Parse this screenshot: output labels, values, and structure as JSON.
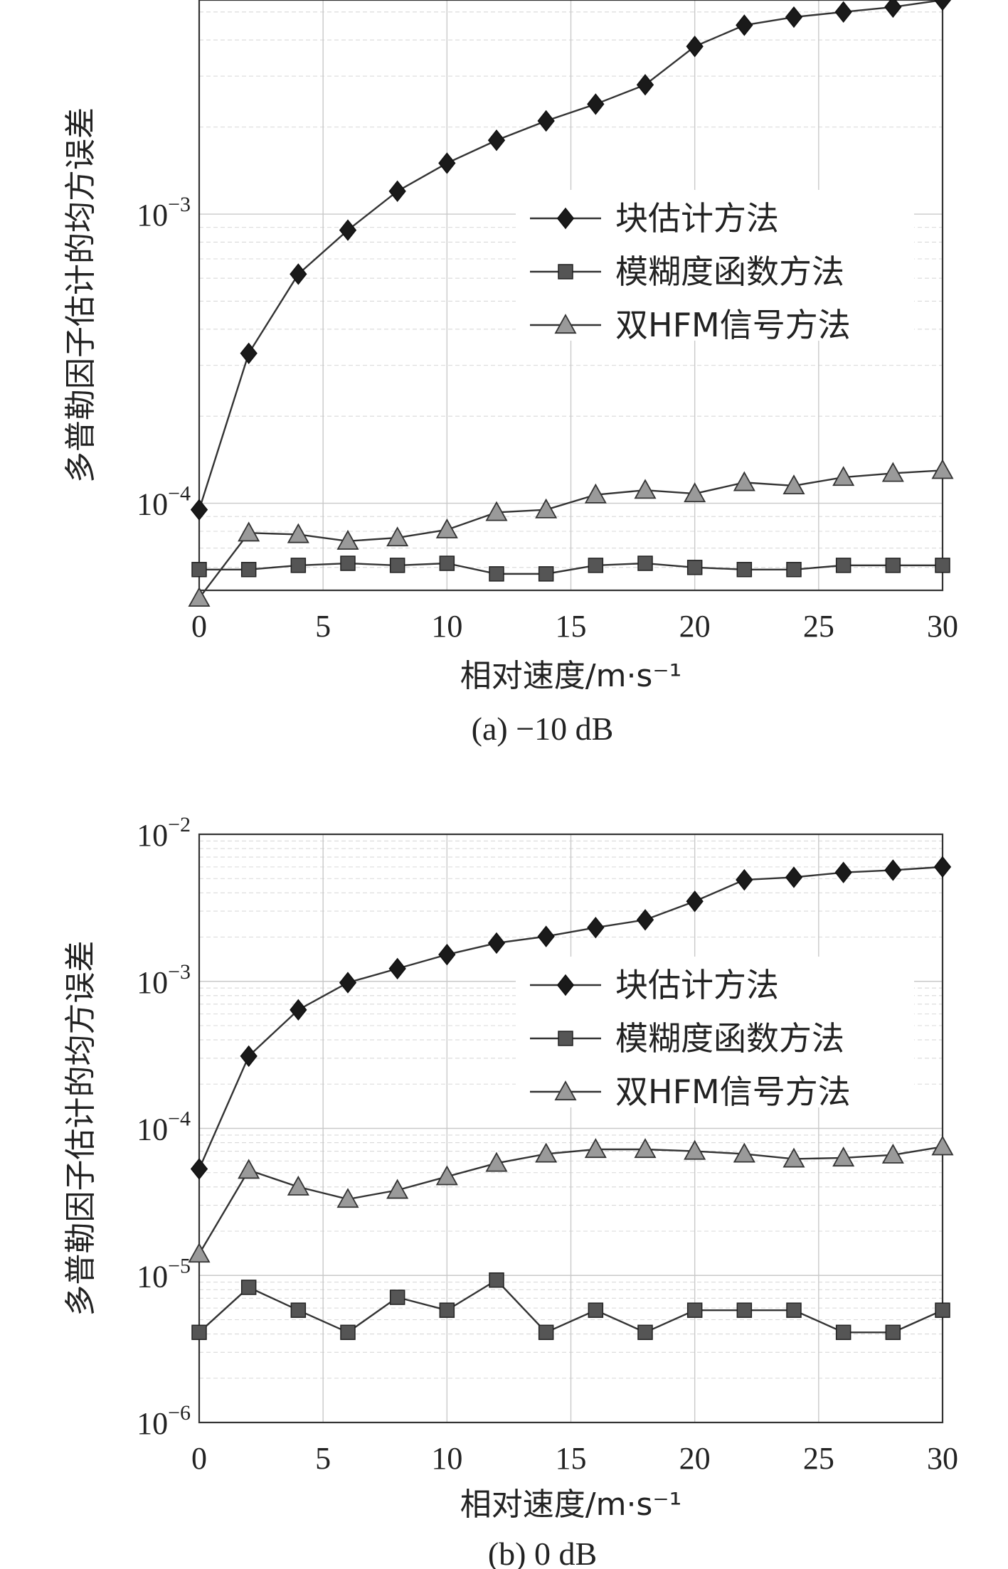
{
  "chart_data": [
    {
      "type": "line",
      "caption": "(a) −10 dB",
      "xlabel": "相对速度/m·s⁻¹",
      "ylabel": "多普勒因子估计的均方误差",
      "x": [
        0,
        2,
        4,
        6,
        8,
        10,
        12,
        14,
        16,
        18,
        20,
        22,
        24,
        26,
        28,
        30
      ],
      "xlim": [
        0,
        30
      ],
      "xticks": [
        0,
        5,
        10,
        15,
        20,
        25,
        30
      ],
      "yscale": "log",
      "ylim": [
        5e-05,
        0.0055
      ],
      "ytick_labels": [
        {
          "mant": "10",
          "exp": "−3",
          "value": 0.001
        },
        {
          "mant": "10",
          "exp": "−4",
          "value": 0.0001
        }
      ],
      "grid": true,
      "legend_position": "upper-middle-right",
      "series": [
        {
          "name": "块估计方法",
          "marker": "diamond",
          "color": "#1a1a1a",
          "values": [
            9.5e-05,
            0.00033,
            0.00062,
            0.00088,
            0.0012,
            0.0015,
            0.0018,
            0.0021,
            0.0024,
            0.0028,
            0.0038,
            0.0045,
            0.0048,
            0.005,
            0.0052,
            0.0055
          ]
        },
        {
          "name": "模糊度函数方法",
          "marker": "square",
          "color": "#555555",
          "values": [
            5.9e-05,
            5.9e-05,
            6.1e-05,
            6.2e-05,
            6.1e-05,
            6.2e-05,
            5.7e-05,
            5.7e-05,
            6.1e-05,
            6.2e-05,
            6e-05,
            5.9e-05,
            5.9e-05,
            6.1e-05,
            6.1e-05,
            6.1e-05
          ]
        },
        {
          "name": "双HFM信号方法",
          "marker": "triangle",
          "color": "#9a9a9a",
          "values": [
            4.7e-05,
            7.9e-05,
            7.8e-05,
            7.4e-05,
            7.6e-05,
            8.1e-05,
            9.3e-05,
            9.5e-05,
            0.000107,
            0.000111,
            0.000108,
            0.000118,
            0.000115,
            0.000123,
            0.000127,
            0.00013
          ]
        }
      ]
    },
    {
      "type": "line",
      "caption": "(b) 0 dB",
      "xlabel": "相对速度/m·s⁻¹",
      "ylabel": "多普勒因子估计的均方误差",
      "x": [
        0,
        2,
        4,
        6,
        8,
        10,
        12,
        14,
        16,
        18,
        20,
        22,
        24,
        26,
        28,
        30
      ],
      "xlim": [
        0,
        30
      ],
      "xticks": [
        0,
        5,
        10,
        15,
        20,
        25,
        30
      ],
      "yscale": "log",
      "ylim": [
        1e-06,
        0.01
      ],
      "ytick_labels": [
        {
          "mant": "10",
          "exp": "−2",
          "value": 0.01
        },
        {
          "mant": "10",
          "exp": "−3",
          "value": 0.001
        },
        {
          "mant": "10",
          "exp": "−4",
          "value": 0.0001
        },
        {
          "mant": "10",
          "exp": "−5",
          "value": 1e-05
        },
        {
          "mant": "10",
          "exp": "−6",
          "value": 1e-06
        }
      ],
      "grid": true,
      "legend_position": "upper-middle-right",
      "series": [
        {
          "name": "块估计方法",
          "marker": "diamond",
          "color": "#1a1a1a",
          "values": [
            5.3e-05,
            0.00031,
            0.00064,
            0.00098,
            0.00122,
            0.00152,
            0.00182,
            0.00202,
            0.00232,
            0.00262,
            0.0035,
            0.0049,
            0.0051,
            0.0055,
            0.0057,
            0.006
          ]
        },
        {
          "name": "模糊度函数方法",
          "marker": "square",
          "color": "#555555",
          "values": [
            4.1e-06,
            8.3e-06,
            5.8e-06,
            4.1e-06,
            7.1e-06,
            5.8e-06,
            9.3e-06,
            4.1e-06,
            5.8e-06,
            4.1e-06,
            5.8e-06,
            5.8e-06,
            5.8e-06,
            4.1e-06,
            4.1e-06,
            5.8e-06
          ]
        },
        {
          "name": "双HFM信号方法",
          "marker": "triangle",
          "color": "#9a9a9a",
          "values": [
            1.4e-05,
            5.2e-05,
            4e-05,
            3.3e-05,
            3.8e-05,
            4.7e-05,
            5.8e-05,
            6.7e-05,
            7.2e-05,
            7.2e-05,
            7e-05,
            6.7e-05,
            6.2e-05,
            6.3e-05,
            6.6e-05,
            7.5e-05
          ]
        }
      ]
    }
  ]
}
